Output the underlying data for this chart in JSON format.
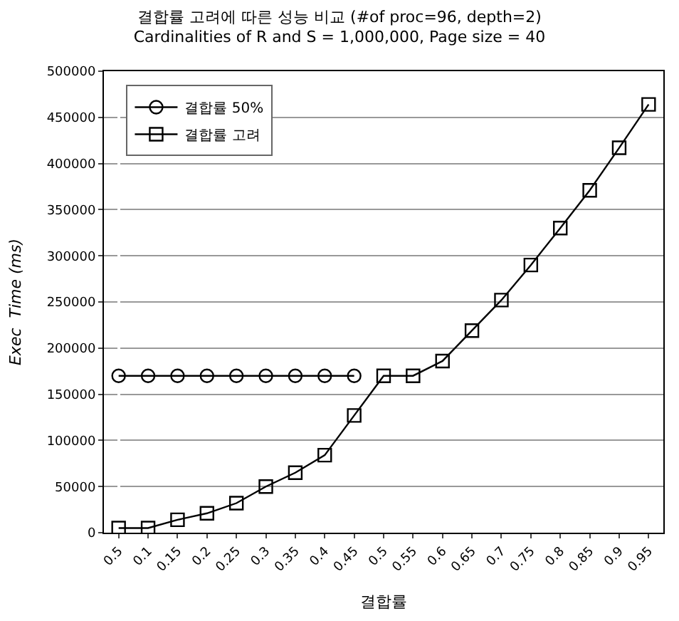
{
  "chart_data": {
    "type": "line",
    "title": "결합률 고려에 따른 성능 비교 (#of proc=96, depth=2)",
    "subtitle": "Cardinalities of R and S = 1,000,000, Page size = 40",
    "xlabel": "결합률",
    "ylabel": "Exec  Time (ms)",
    "categories": [
      "0.5",
      "0.1",
      "0.15",
      "0.2",
      "0.25",
      "0.3",
      "0.35",
      "0.4",
      "0.45",
      "0.5",
      "0.55",
      "0.6",
      "0.65",
      "0.7",
      "0.75",
      "0.8",
      "0.85",
      "0.9",
      "0.95"
    ],
    "series": [
      {
        "name": "결합률 50%",
        "color": "#000000",
        "marker": "circle",
        "values": [
          170000,
          170000,
          170000,
          170000,
          170000,
          170000,
          170000,
          170000,
          170000,
          null,
          null,
          null,
          null,
          null,
          null,
          null,
          null,
          null,
          null
        ]
      },
      {
        "name": "결합률 고려",
        "color": "#000000",
        "marker": "square",
        "values": [
          5000,
          5000,
          14000,
          21000,
          32000,
          50000,
          65000,
          84000,
          127000,
          170000,
          170000,
          186000,
          219000,
          252000,
          290000,
          330000,
          371000,
          417000,
          464000
        ]
      }
    ],
    "ylim": [
      0,
      500000
    ],
    "yticks": [
      0,
      50000,
      100000,
      150000,
      200000,
      250000,
      300000,
      350000,
      400000,
      450000,
      500000
    ],
    "grid": "y",
    "legend": "top left",
    "line_style": "solid"
  }
}
